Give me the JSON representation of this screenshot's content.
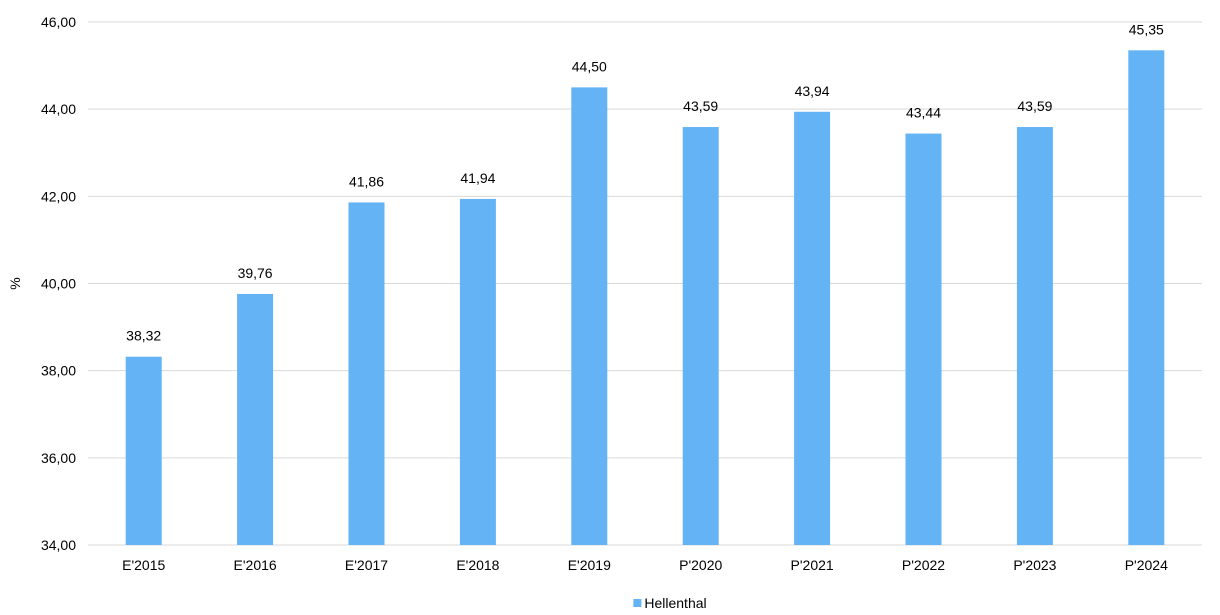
{
  "chart_data": {
    "type": "bar",
    "categories": [
      "E'2015",
      "E'2016",
      "E'2017",
      "E'2018",
      "E'2019",
      "P'2020",
      "P'2021",
      "P'2022",
      "P'2023",
      "P'2024"
    ],
    "series": [
      {
        "name": "Hellenthal",
        "values": [
          38.32,
          39.76,
          41.86,
          41.94,
          44.5,
          43.59,
          43.94,
          43.44,
          43.59,
          45.35
        ],
        "labels": [
          "38,32",
          "39,76",
          "41,86",
          "41,94",
          "44,50",
          "43,59",
          "43,94",
          "43,44",
          "43,59",
          "45,35"
        ],
        "color": "#63b3f5"
      }
    ],
    "ylabel": "%",
    "ylim": [
      34,
      46
    ],
    "yticks": [
      34,
      36,
      38,
      40,
      42,
      44,
      46
    ],
    "ytick_labels": [
      "34,00",
      "36,00",
      "38,00",
      "40,00",
      "42,00",
      "44,00",
      "46,00"
    ],
    "grid": true,
    "legend_position": "bottom-center",
    "gridline_color": "#d9d9d9"
  }
}
